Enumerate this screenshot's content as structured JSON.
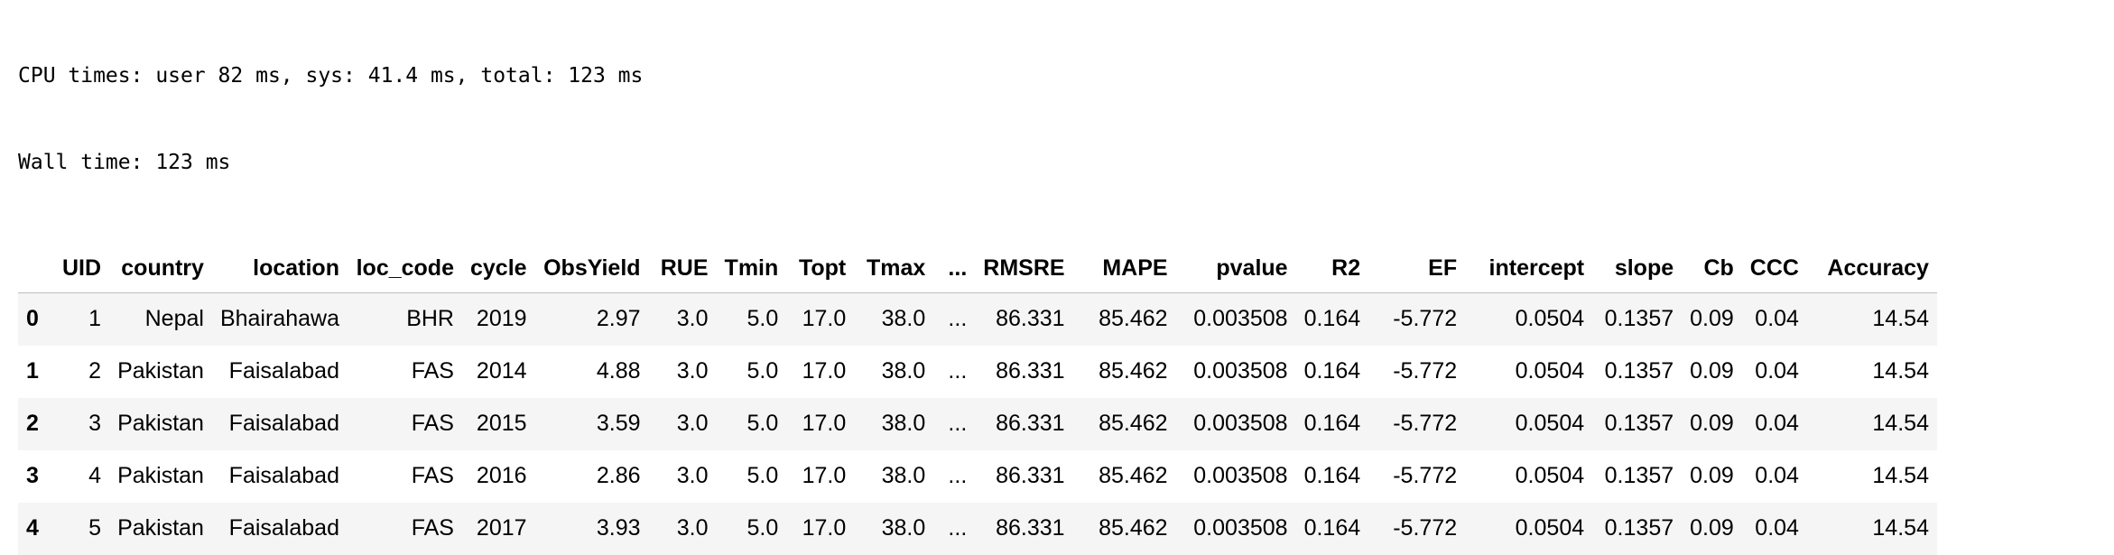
{
  "stdout": {
    "line1": "CPU times: user 82 ms, sys: 41.4 ms, total: 123 ms",
    "line2": "Wall time: 123 ms"
  },
  "table": {
    "columns": [
      "",
      "UID",
      "country",
      "location",
      "loc_code",
      "cycle",
      "ObsYield",
      "RUE",
      "Tmin",
      "Topt",
      "Tmax",
      "...",
      "RMSRE",
      "MAPE",
      "pvalue",
      "R2",
      "EF",
      "intercept",
      "slope",
      "Cb",
      "CCC",
      "Accuracy"
    ],
    "rows": [
      [
        "0",
        "1",
        "Nepal",
        "Bhairahawa",
        "BHR",
        "2019",
        "2.97",
        "3.0",
        "5.0",
        "17.0",
        "38.0",
        "...",
        "86.331",
        "85.462",
        "0.003508",
        "0.164",
        "-5.772",
        "0.0504",
        "0.1357",
        "0.09",
        "0.04",
        "14.54"
      ],
      [
        "1",
        "2",
        "Pakistan",
        "Faisalabad",
        "FAS",
        "2014",
        "4.88",
        "3.0",
        "5.0",
        "17.0",
        "38.0",
        "...",
        "86.331",
        "85.462",
        "0.003508",
        "0.164",
        "-5.772",
        "0.0504",
        "0.1357",
        "0.09",
        "0.04",
        "14.54"
      ],
      [
        "2",
        "3",
        "Pakistan",
        "Faisalabad",
        "FAS",
        "2015",
        "3.59",
        "3.0",
        "5.0",
        "17.0",
        "38.0",
        "...",
        "86.331",
        "85.462",
        "0.003508",
        "0.164",
        "-5.772",
        "0.0504",
        "0.1357",
        "0.09",
        "0.04",
        "14.54"
      ],
      [
        "3",
        "4",
        "Pakistan",
        "Faisalabad",
        "FAS",
        "2016",
        "2.86",
        "3.0",
        "5.0",
        "17.0",
        "38.0",
        "...",
        "86.331",
        "85.462",
        "0.003508",
        "0.164",
        "-5.772",
        "0.0504",
        "0.1357",
        "0.09",
        "0.04",
        "14.54"
      ],
      [
        "4",
        "5",
        "Pakistan",
        "Faisalabad",
        "FAS",
        "2017",
        "3.93",
        "3.0",
        "5.0",
        "17.0",
        "38.0",
        "...",
        "86.331",
        "85.462",
        "0.003508",
        "0.164",
        "-5.772",
        "0.0504",
        "0.1357",
        "0.09",
        "0.04",
        "14.54"
      ]
    ]
  },
  "colors": {
    "stripe": "#f5f5f5",
    "header_rule": "#bdbdbd",
    "text": "#000000"
  }
}
